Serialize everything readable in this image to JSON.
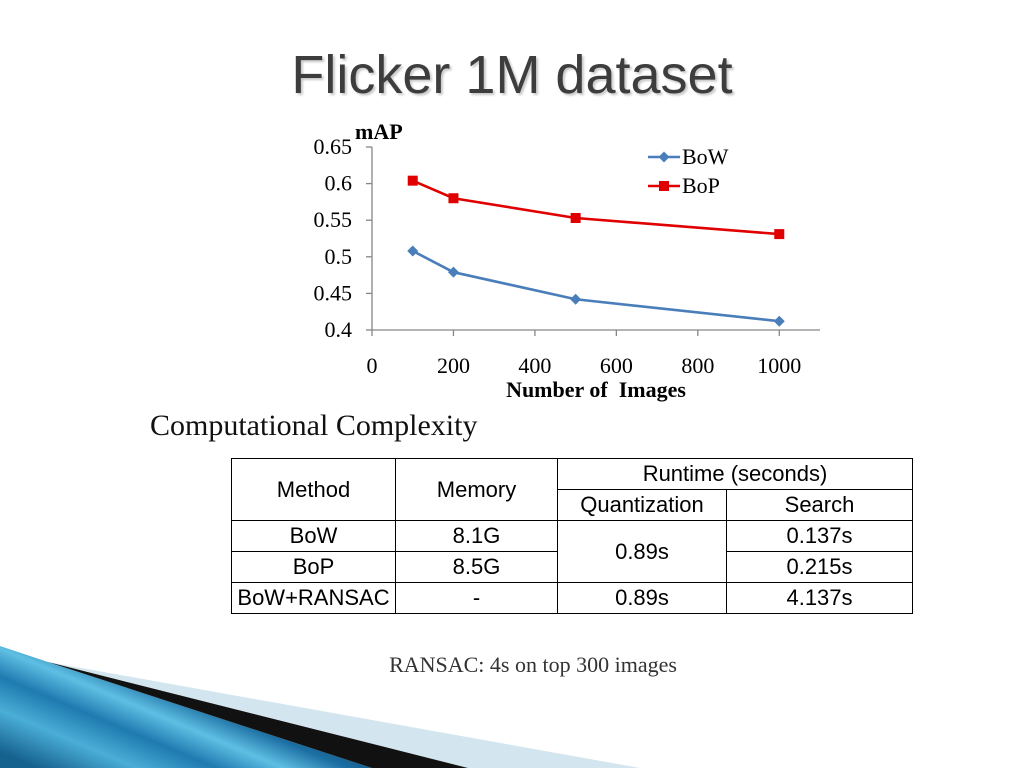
{
  "slide": {
    "title": "Flicker 1M dataset",
    "section_heading": "Computational Complexity",
    "footnote": "RANSAC: 4s on top 300 images"
  },
  "chart_data": {
    "type": "line",
    "xlabel": "Number of  Images",
    "ylabel": "mAP",
    "x": [
      100,
      200,
      500,
      1000
    ],
    "series": [
      {
        "name": "BoW",
        "values": [
          0.508,
          0.479,
          0.442,
          0.412
        ],
        "color": "#4a7ebb",
        "marker": "diamond"
      },
      {
        "name": "BoP",
        "values": [
          0.604,
          0.58,
          0.553,
          0.531
        ],
        "color": "#e00000",
        "marker": "square"
      }
    ],
    "xlim": [
      0,
      1100
    ],
    "ylim": [
      0.4,
      0.65
    ],
    "xticks": [
      0,
      200,
      400,
      600,
      800,
      1000
    ],
    "yticks": [
      0.4,
      0.45,
      0.5,
      0.55,
      0.6,
      0.65
    ],
    "grid": false,
    "legend": "top-right"
  },
  "table": {
    "headers": {
      "method": "Method",
      "memory": "Memory",
      "runtime": "Runtime (seconds)",
      "quantization": "Quantization",
      "search": "Search"
    },
    "rows": [
      {
        "method": "BoW",
        "memory": "8.1G",
        "quantization": "0.89s",
        "search": "0.137s"
      },
      {
        "method": "BoP",
        "memory": "8.5G",
        "search": "0.215s"
      },
      {
        "method": "BoW+RANSAC",
        "memory": "-",
        "quantization": "0.89s",
        "search": "4.137s"
      }
    ]
  },
  "theme": {
    "title_color": "#3d3d3d",
    "axis_color": "#868686",
    "stripe_dark": "#111111",
    "stripe_pale": "#d3e5ee"
  }
}
